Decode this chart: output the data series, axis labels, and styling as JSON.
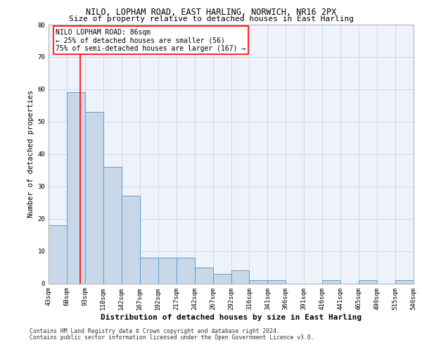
{
  "title1": "NILO, LOPHAM ROAD, EAST HARLING, NORWICH, NR16 2PX",
  "title2": "Size of property relative to detached houses in East Harling",
  "xlabel": "Distribution of detached houses by size in East Harling",
  "ylabel": "Number of detached properties",
  "footnote1": "Contains HM Land Registry data © Crown copyright and database right 2024.",
  "footnote2": "Contains public sector information licensed under the Open Government Licence v3.0.",
  "bin_labels": [
    "43sqm",
    "68sqm",
    "93sqm",
    "118sqm",
    "142sqm",
    "167sqm",
    "192sqm",
    "217sqm",
    "242sqm",
    "267sqm",
    "292sqm",
    "316sqm",
    "341sqm",
    "366sqm",
    "391sqm",
    "416sqm",
    "441sqm",
    "465sqm",
    "490sqm",
    "515sqm",
    "540sqm"
  ],
  "bar_heights": [
    18,
    59,
    53,
    36,
    27,
    8,
    8,
    8,
    5,
    3,
    4,
    1,
    1,
    0,
    0,
    1,
    0,
    1,
    0,
    1
  ],
  "bar_color": "#c8d8e8",
  "bar_edge_color": "#5b9bd5",
  "red_line_x": 1.72,
  "annotation_title": "NILO LOPHAM ROAD: 86sqm",
  "annotation_line1": "← 25% of detached houses are smaller (56)",
  "annotation_line2": "75% of semi-detached houses are larger (167) →",
  "ylim": [
    0,
    80
  ],
  "yticks": [
    0,
    10,
    20,
    30,
    40,
    50,
    60,
    70,
    80
  ],
  "grid_color": "#d0d8e8",
  "bg_color": "#eef2fa",
  "title1_fontsize": 8.5,
  "title2_fontsize": 8.0,
  "ylabel_fontsize": 7.5,
  "xlabel_fontsize": 8.0,
  "tick_fontsize": 6.5,
  "annotation_fontsize": 7.0,
  "footnote_fontsize": 5.8
}
